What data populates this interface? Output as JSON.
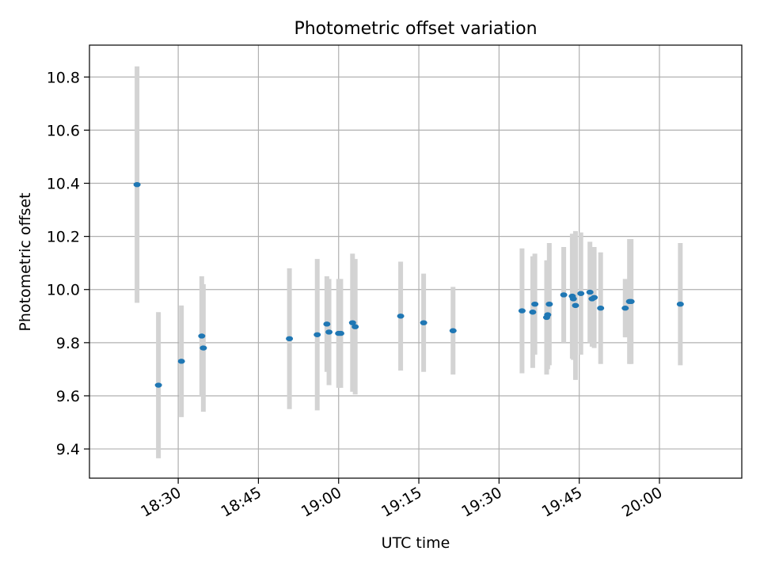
{
  "chart_data": {
    "type": "scatter",
    "title": "Photometric offset variation",
    "xlabel": "UTC time",
    "ylabel": "Photometric offset",
    "xlim_minutes": [
      1093.4,
      1215.4
    ],
    "ylim": [
      9.29,
      10.92
    ],
    "x_ticks": [
      {
        "minutes": 1110,
        "label": "18:30"
      },
      {
        "minutes": 1125,
        "label": "18:45"
      },
      {
        "minutes": 1140,
        "label": "19:00"
      },
      {
        "minutes": 1155,
        "label": "19:15"
      },
      {
        "minutes": 1170,
        "label": "19:30"
      },
      {
        "minutes": 1185,
        "label": "19:45"
      },
      {
        "minutes": 1200,
        "label": "20:00"
      }
    ],
    "y_ticks": [
      {
        "value": 9.4,
        "label": "9.4"
      },
      {
        "value": 9.6,
        "label": "9.6"
      },
      {
        "value": 9.8,
        "label": "9.8"
      },
      {
        "value": 10.0,
        "label": "10.0"
      },
      {
        "value": 10.2,
        "label": "10.2"
      },
      {
        "value": 10.4,
        "label": "10.4"
      },
      {
        "value": 10.6,
        "label": "10.6"
      },
      {
        "value": 10.8,
        "label": "10.8"
      }
    ],
    "grid": true,
    "point_color": "#1f77b4",
    "errorbar_color": "#d3d3d3",
    "series": [
      {
        "name": "Photometric offset",
        "points": [
          {
            "t": 1102.3,
            "y": 10.395,
            "err": 0.445
          },
          {
            "t": 1106.3,
            "y": 9.64,
            "err": 0.275
          },
          {
            "t": 1110.6,
            "y": 9.73,
            "err": 0.21
          },
          {
            "t": 1114.4,
            "y": 9.825,
            "err": 0.225
          },
          {
            "t": 1114.7,
            "y": 9.78,
            "err": 0.24
          },
          {
            "t": 1130.8,
            "y": 9.815,
            "err": 0.265
          },
          {
            "t": 1136.0,
            "y": 9.83,
            "err": 0.285
          },
          {
            "t": 1137.8,
            "y": 9.87,
            "err": 0.18
          },
          {
            "t": 1138.2,
            "y": 9.84,
            "err": 0.2
          },
          {
            "t": 1140.0,
            "y": 9.835,
            "err": 0.205
          },
          {
            "t": 1140.4,
            "y": 9.835,
            "err": 0.205
          },
          {
            "t": 1142.6,
            "y": 9.875,
            "err": 0.26
          },
          {
            "t": 1143.1,
            "y": 9.86,
            "err": 0.255
          },
          {
            "t": 1151.6,
            "y": 9.9,
            "err": 0.205
          },
          {
            "t": 1155.9,
            "y": 9.875,
            "err": 0.185
          },
          {
            "t": 1161.4,
            "y": 9.845,
            "err": 0.165
          },
          {
            "t": 1174.3,
            "y": 9.92,
            "err": 0.235
          },
          {
            "t": 1176.3,
            "y": 9.915,
            "err": 0.21
          },
          {
            "t": 1176.7,
            "y": 9.945,
            "err": 0.19
          },
          {
            "t": 1178.9,
            "y": 9.895,
            "err": 0.215
          },
          {
            "t": 1179.1,
            "y": 9.905,
            "err": 0.205
          },
          {
            "t": 1179.4,
            "y": 9.945,
            "err": 0.23
          },
          {
            "t": 1182.1,
            "y": 9.98,
            "err": 0.18
          },
          {
            "t": 1183.7,
            "y": 9.975,
            "err": 0.235
          },
          {
            "t": 1183.9,
            "y": 9.965,
            "err": 0.23
          },
          {
            "t": 1184.3,
            "y": 9.94,
            "err": 0.28
          },
          {
            "t": 1185.3,
            "y": 9.985,
            "err": 0.23
          },
          {
            "t": 1187.0,
            "y": 9.99,
            "err": 0.19
          },
          {
            "t": 1187.4,
            "y": 9.965,
            "err": 0.18
          },
          {
            "t": 1187.8,
            "y": 9.97,
            "err": 0.19
          },
          {
            "t": 1189.0,
            "y": 9.93,
            "err": 0.21
          },
          {
            "t": 1193.6,
            "y": 9.93,
            "err": 0.11
          },
          {
            "t": 1194.4,
            "y": 9.955,
            "err": 0.235
          },
          {
            "t": 1194.7,
            "y": 9.955,
            "err": 0.235
          },
          {
            "t": 1203.9,
            "y": 9.945,
            "err": 0.23
          }
        ]
      }
    ]
  }
}
